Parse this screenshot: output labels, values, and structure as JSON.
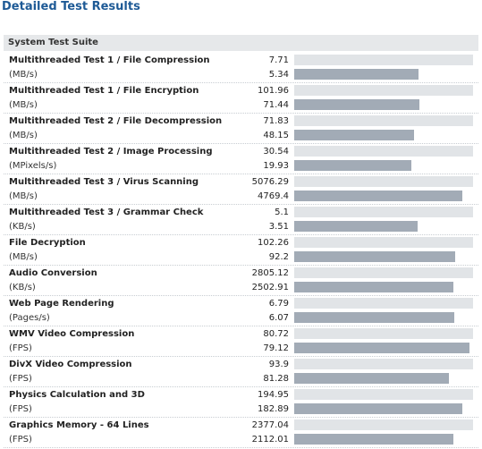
{
  "title": "Detailed Test Results",
  "table": {
    "header": "System Test Suite",
    "rows": [
      {
        "name": "Multithreaded Test 1 / File Compression",
        "unit": "(MB/s)",
        "reference": 7.71,
        "result": 5.34
      },
      {
        "name": "Multithreaded Test 1 / File Encryption",
        "unit": "(MB/s)",
        "reference": 101.96,
        "result": 71.44
      },
      {
        "name": "Multithreaded Test 2 / File Decompression",
        "unit": "(MB/s)",
        "reference": 71.83,
        "result": 48.15
      },
      {
        "name": "Multithreaded Test 2 / Image Processing",
        "unit": "(MPixels/s)",
        "reference": 30.54,
        "result": 19.93
      },
      {
        "name": "Multithreaded Test 3 / Virus Scanning",
        "unit": "(MB/s)",
        "reference": 5076.29,
        "result": 4769.4
      },
      {
        "name": "Multithreaded Test 3 / Grammar Check",
        "unit": "(KB/s)",
        "reference": 5.1,
        "result": 3.51
      },
      {
        "name": "File Decryption",
        "unit": "(MB/s)",
        "reference": 102.26,
        "result": 92.2
      },
      {
        "name": "Audio Conversion",
        "unit": "(KB/s)",
        "reference": 2805.12,
        "result": 2502.91
      },
      {
        "name": "Web Page Rendering",
        "unit": "(Pages/s)",
        "reference": 6.79,
        "result": 6.07
      },
      {
        "name": "WMV Video Compression",
        "unit": "(FPS)",
        "reference": 80.72,
        "result": 79.12
      },
      {
        "name": "DivX Video Compression",
        "unit": "(FPS)",
        "reference": 93.9,
        "result": 81.28
      },
      {
        "name": "Physics Calculation and 3D",
        "unit": "(FPS)",
        "reference": 194.95,
        "result": 182.89
      },
      {
        "name": "Graphics Memory - 64 Lines",
        "unit": "(FPS)",
        "reference": 2377.04,
        "result": 2112.01
      }
    ]
  }
}
